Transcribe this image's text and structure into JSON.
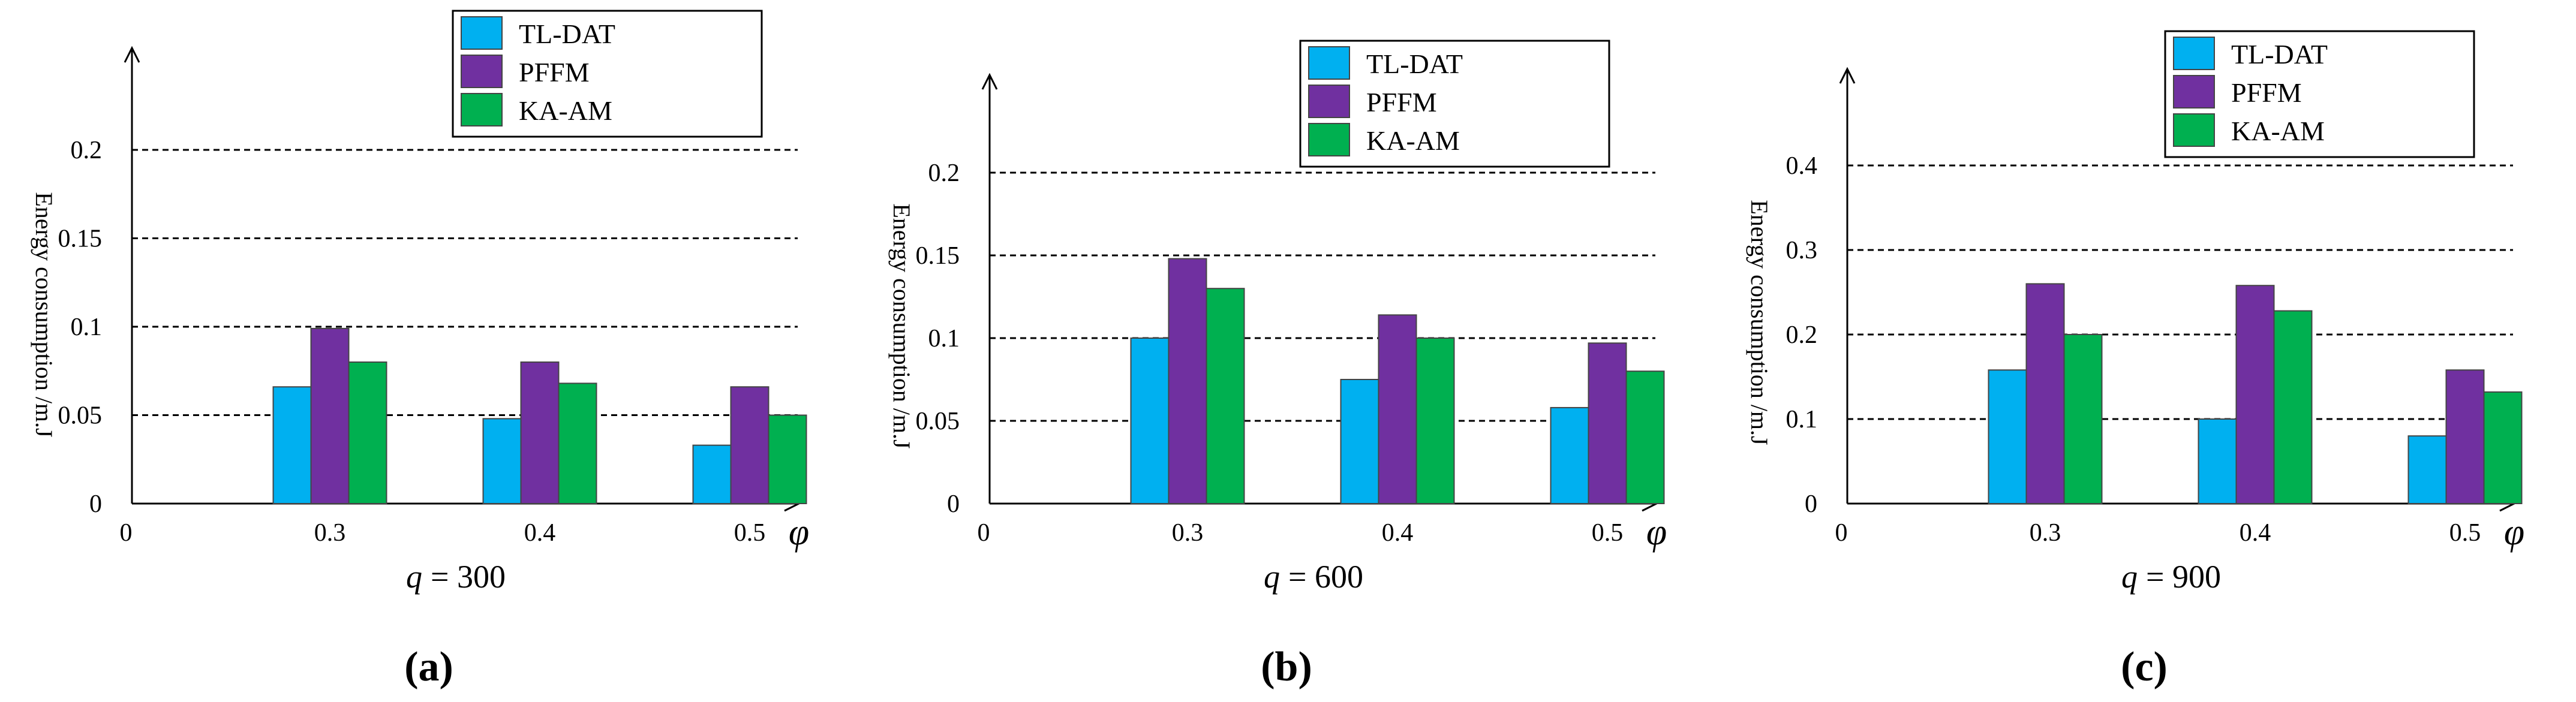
{
  "colors": {
    "TL-DAT": "#00b0f0",
    "PFFM": "#7030a0",
    "KA-AM": "#00b050",
    "bar_stroke": "#444444",
    "axis": "#000000",
    "grid": "#000000"
  },
  "chart_data": [
    {
      "type": "bar",
      "panel_label": "(a)",
      "subtitle": "q = 300",
      "subtitle_var": "q",
      "subtitle_value": "= 300",
      "ylabel": "Energy consumption /m.J",
      "xlabel": "φ",
      "origin_label": "0",
      "categories": [
        "0.3",
        "0.4",
        "0.5"
      ],
      "ylim": [
        0,
        0.2
      ],
      "yticks": [
        "0",
        "0.05",
        "0.1",
        "0.15",
        "0.2"
      ],
      "ytick_values": [
        0,
        0.05,
        0.1,
        0.15,
        0.2
      ],
      "grid": "dashed horizontal",
      "legend_position": "top-right",
      "series": [
        {
          "name": "TL-DAT",
          "values": [
            0.066,
            0.048,
            0.033
          ]
        },
        {
          "name": "PFFM",
          "values": [
            0.099,
            0.08,
            0.066
          ]
        },
        {
          "name": "KA-AM",
          "values": [
            0.08,
            0.068,
            0.05
          ]
        }
      ]
    },
    {
      "type": "bar",
      "panel_label": "(b)",
      "subtitle": "q = 600",
      "subtitle_var": "q",
      "subtitle_value": "= 600",
      "ylabel": "Energy consumption /m.J",
      "xlabel": "φ",
      "origin_label": "0",
      "categories": [
        "0.3",
        "0.4",
        "0.5"
      ],
      "ylim": [
        0,
        0.2
      ],
      "yticks": [
        "0",
        "0.05",
        "0.1",
        "0.15",
        "0.2"
      ],
      "ytick_values": [
        0,
        0.05,
        0.1,
        0.15,
        0.2
      ],
      "grid": "dashed horizontal",
      "legend_position": "top-right",
      "series": [
        {
          "name": "TL-DAT",
          "values": [
            0.1,
            0.075,
            0.058
          ]
        },
        {
          "name": "PFFM",
          "values": [
            0.148,
            0.114,
            0.097
          ]
        },
        {
          "name": "KA-AM",
          "values": [
            0.13,
            0.1,
            0.08
          ]
        }
      ]
    },
    {
      "type": "bar",
      "panel_label": "(c)",
      "subtitle": "q = 900",
      "subtitle_var": "q",
      "subtitle_value": "= 900",
      "ylabel": "Energy consumption /m.J",
      "xlabel": "φ",
      "origin_label": "0",
      "categories": [
        "0.3",
        "0.4",
        "0.5"
      ],
      "ylim": [
        0,
        0.4
      ],
      "yticks": [
        "0",
        "0.1",
        "0.2",
        "0.3",
        "0.4"
      ],
      "ytick_values": [
        0,
        0.1,
        0.2,
        0.3,
        0.4
      ],
      "grid": "dashed horizontal",
      "legend_position": "top-right",
      "series": [
        {
          "name": "TL-DAT",
          "values": [
            0.158,
            0.1,
            0.08
          ]
        },
        {
          "name": "PFFM",
          "values": [
            0.26,
            0.258,
            0.158
          ]
        },
        {
          "name": "KA-AM",
          "values": [
            0.2,
            0.228,
            0.132
          ]
        }
      ]
    }
  ]
}
